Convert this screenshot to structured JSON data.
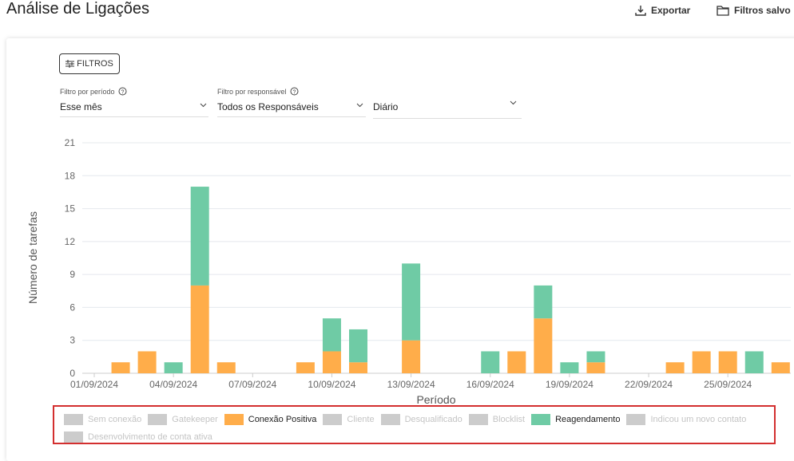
{
  "header": {
    "title": "Análise de Ligações",
    "export": "Exportar",
    "saved_filters": "Filtros salvo"
  },
  "filters": {
    "button": "FILTROS",
    "period_label": "Filtro por período",
    "period_value": "Esse mês",
    "owner_label": "Filtro por responsável",
    "owner_value": "Todos os Responsáveis",
    "granularity_value": "Diário"
  },
  "chart_data": {
    "type": "stacked_bar",
    "x_label": "Período",
    "y_label": "Número de tarefas",
    "categories": [
      "01/09/2024",
      null,
      null,
      "04/09/2024",
      null,
      null,
      "07/09/2024",
      null,
      null,
      "10/09/2024",
      null,
      null,
      "13/09/2024",
      null,
      null,
      "16/09/2024",
      null,
      null,
      "19/09/2024",
      null,
      null,
      "22/09/2024",
      null,
      null,
      "25/09/2024",
      null,
      null
    ],
    "series": [
      {
        "name": "Sem conexão",
        "color": "#cccccc",
        "hidden": true
      },
      {
        "name": "Gatekeeper",
        "color": "#cccccc",
        "hidden": true
      },
      {
        "name": "Conexão Positiva",
        "color": "#ffad4a",
        "values": [
          0,
          1,
          2,
          0,
          8,
          1,
          0,
          0,
          1,
          2,
          1,
          0,
          3,
          0,
          0,
          0,
          2,
          5,
          0,
          1,
          0,
          0,
          1,
          2,
          2,
          0,
          1
        ]
      },
      {
        "name": "Cliente",
        "color": "#cccccc",
        "hidden": true
      },
      {
        "name": "Desqualificado",
        "color": "#cccccc",
        "hidden": true
      },
      {
        "name": "Blocklist",
        "color": "#cccccc",
        "hidden": true
      },
      {
        "name": "Reagendamento",
        "color": "#6fcba5",
        "values": [
          0,
          0,
          0,
          1,
          9,
          0,
          0,
          0,
          0,
          3,
          3,
          0,
          7,
          0,
          0,
          2,
          0,
          3,
          1,
          1,
          0,
          0,
          0,
          0,
          0,
          2,
          0
        ]
      },
      {
        "name": "Indicou um novo contato",
        "color": "#cccccc",
        "hidden": true
      },
      {
        "name": "Desenvolvimento de conta ativa",
        "color": "#cccccc",
        "hidden": true
      }
    ],
    "ylim": [
      0,
      21
    ],
    "yticks": [
      0,
      3,
      6,
      9,
      12,
      15,
      18,
      21
    ],
    "grid": true
  }
}
